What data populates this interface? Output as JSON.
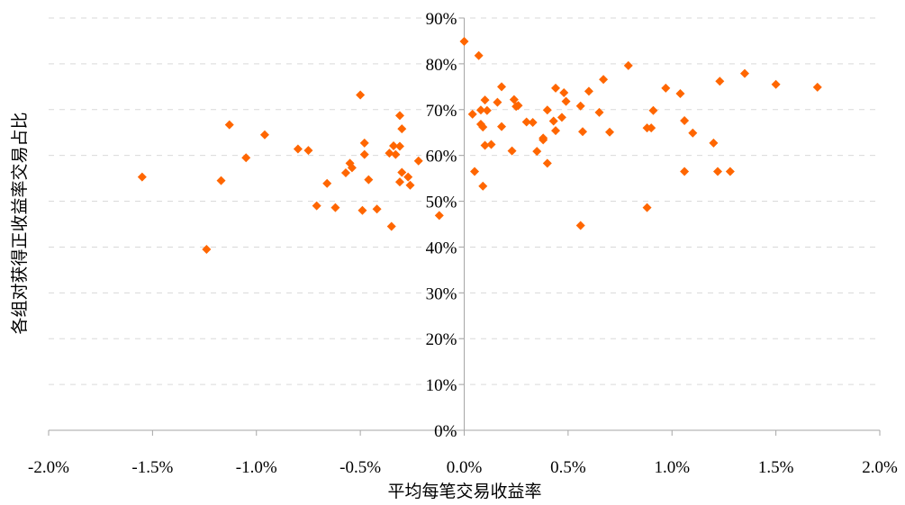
{
  "chart_data": {
    "type": "scatter",
    "xlabel": "平均每笔交易收益率",
    "ylabel": "各组对获得正收益率交易占比",
    "xlim": [
      -0.02,
      0.02
    ],
    "ylim": [
      0,
      0.9
    ],
    "x_ticks": [
      -0.02,
      -0.015,
      -0.01,
      -0.005,
      0.0,
      0.005,
      0.01,
      0.015,
      0.02
    ],
    "x_tick_labels": [
      "-2.0%",
      "-1.5%",
      "-1.0%",
      "-0.5%",
      "0.0%",
      "0.5%",
      "1.0%",
      "1.5%",
      "2.0%"
    ],
    "y_ticks": [
      0,
      0.1,
      0.2,
      0.3,
      0.4,
      0.5,
      0.6,
      0.7,
      0.8,
      0.9
    ],
    "y_tick_labels": [
      "0%",
      "10%",
      "20%",
      "30%",
      "40%",
      "50%",
      "60%",
      "70%",
      "80%",
      "90%"
    ],
    "grid": "horizontal-dashed",
    "marker": "diamond",
    "color": "#FF6600",
    "points": [
      [
        -0.0155,
        0.553
      ],
      [
        -0.0124,
        0.395
      ],
      [
        -0.0117,
        0.545
      ],
      [
        -0.0113,
        0.667
      ],
      [
        -0.0105,
        0.595
      ],
      [
        -0.0096,
        0.645
      ],
      [
        -0.008,
        0.614
      ],
      [
        -0.0075,
        0.611
      ],
      [
        -0.0071,
        0.49
      ],
      [
        -0.0066,
        0.539
      ],
      [
        -0.0062,
        0.486
      ],
      [
        -0.0057,
        0.562
      ],
      [
        -0.0055,
        0.583
      ],
      [
        -0.0054,
        0.573
      ],
      [
        -0.005,
        0.732
      ],
      [
        -0.0049,
        0.48
      ],
      [
        -0.0048,
        0.627
      ],
      [
        -0.0048,
        0.602
      ],
      [
        -0.0046,
        0.547
      ],
      [
        -0.0042,
        0.483
      ],
      [
        -0.0036,
        0.605
      ],
      [
        -0.0034,
        0.621
      ],
      [
        -0.0035,
        0.445
      ],
      [
        -0.0033,
        0.602
      ],
      [
        -0.0031,
        0.687
      ],
      [
        -0.0031,
        0.62
      ],
      [
        -0.0031,
        0.542
      ],
      [
        -0.003,
        0.658
      ],
      [
        -0.003,
        0.563
      ],
      [
        -0.0027,
        0.553
      ],
      [
        -0.0026,
        0.535
      ],
      [
        -0.0022,
        0.588
      ],
      [
        -0.0012,
        0.469
      ],
      [
        0.0,
        0.849
      ],
      [
        0.0004,
        0.69
      ],
      [
        0.0005,
        0.565
      ],
      [
        0.0007,
        0.818
      ],
      [
        0.0008,
        0.699
      ],
      [
        0.0008,
        0.668
      ],
      [
        0.0009,
        0.662
      ],
      [
        0.0009,
        0.533
      ],
      [
        0.001,
        0.721
      ],
      [
        0.001,
        0.622
      ],
      [
        0.0011,
        0.698
      ],
      [
        0.0013,
        0.624
      ],
      [
        0.0016,
        0.716
      ],
      [
        0.0018,
        0.75
      ],
      [
        0.0018,
        0.663
      ],
      [
        0.0023,
        0.61
      ],
      [
        0.0024,
        0.722
      ],
      [
        0.0025,
        0.707
      ],
      [
        0.0026,
        0.709
      ],
      [
        0.003,
        0.673
      ],
      [
        0.0033,
        0.672
      ],
      [
        0.0035,
        0.609
      ],
      [
        0.0038,
        0.634
      ],
      [
        0.0038,
        0.638
      ],
      [
        0.004,
        0.699
      ],
      [
        0.004,
        0.583
      ],
      [
        0.0043,
        0.675
      ],
      [
        0.0044,
        0.747
      ],
      [
        0.0044,
        0.654
      ],
      [
        0.0047,
        0.683
      ],
      [
        0.0048,
        0.737
      ],
      [
        0.0049,
        0.718
      ],
      [
        0.0056,
        0.708
      ],
      [
        0.0056,
        0.447
      ],
      [
        0.0057,
        0.652
      ],
      [
        0.006,
        0.74
      ],
      [
        0.0065,
        0.694
      ],
      [
        0.0067,
        0.766
      ],
      [
        0.007,
        0.651
      ],
      [
        0.0079,
        0.796
      ],
      [
        0.0088,
        0.66
      ],
      [
        0.0088,
        0.486
      ],
      [
        0.009,
        0.66
      ],
      [
        0.0091,
        0.698
      ],
      [
        0.0097,
        0.747
      ],
      [
        0.0104,
        0.735
      ],
      [
        0.0106,
        0.676
      ],
      [
        0.0106,
        0.565
      ],
      [
        0.011,
        0.649
      ],
      [
        0.012,
        0.627
      ],
      [
        0.0122,
        0.565
      ],
      [
        0.0123,
        0.762
      ],
      [
        0.0128,
        0.565
      ],
      [
        0.0135,
        0.779
      ],
      [
        0.015,
        0.755
      ],
      [
        0.017,
        0.749
      ]
    ]
  }
}
